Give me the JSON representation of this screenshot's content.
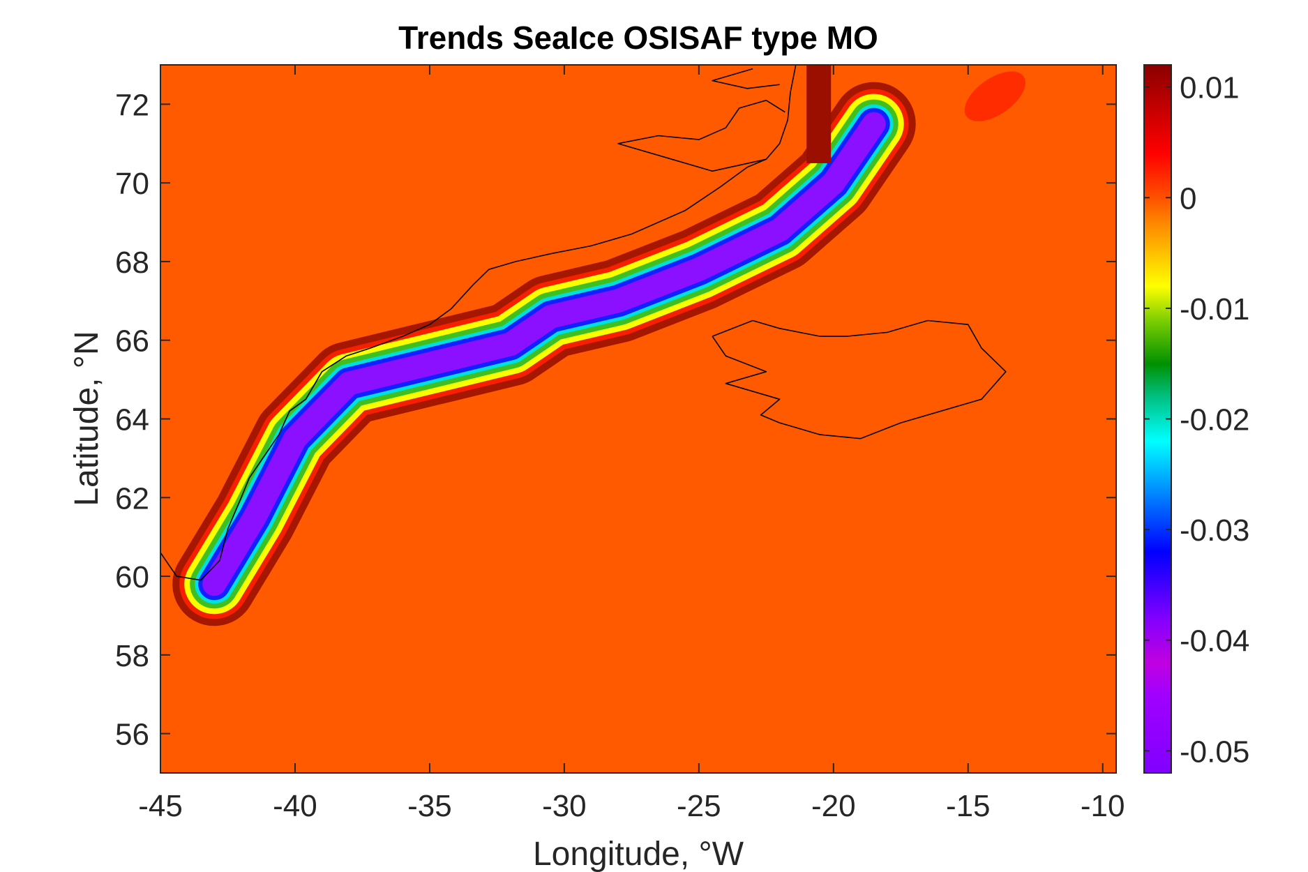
{
  "figure": {
    "title": "Trends SeaIce OSISAF type MO",
    "xlabel": "Longitude, °W",
    "ylabel": "Latitude, °N"
  },
  "map_data": {
    "type": "heatmap",
    "projection": "plate carree (lon/lat grid)",
    "x_range": [
      -45,
      -9.5
    ],
    "y_range": [
      55,
      73
    ],
    "x_ticks": [
      -45,
      -40,
      -35,
      -30,
      -25,
      -20,
      -15,
      -10
    ],
    "y_ticks": [
      56,
      58,
      60,
      62,
      64,
      66,
      68,
      70,
      72
    ],
    "x_tick_labels": [
      "-45",
      "-40",
      "-35",
      "-30",
      "-25",
      "-20",
      "-15",
      "-10"
    ],
    "y_tick_labels": [
      "56",
      "58",
      "60",
      "62",
      "64",
      "66",
      "68",
      "70",
      "72"
    ],
    "background_value": 0,
    "coastlines": [
      "Greenland east coast",
      "Iceland"
    ],
    "field_description_points": {
      "band_center_lon": [
        -43.0,
        -41.5,
        -40.0,
        -38.0,
        -35.0,
        -32.0,
        -30.5,
        -28.0,
        -25.0,
        -22.0,
        -20.0,
        -18.5
      ],
      "band_center_lat": [
        59.8,
        61.5,
        63.5,
        64.9,
        65.4,
        65.9,
        66.6,
        67.0,
        67.8,
        68.8,
        70.0,
        71.5
      ],
      "band_min_trend": -0.05
    },
    "colorbar": {
      "range": [
        -0.052,
        0.012
      ],
      "ticks": [
        0.01,
        0,
        -0.01,
        -0.02,
        -0.03,
        -0.04,
        -0.05
      ],
      "tick_labels": [
        "0.01",
        "0",
        "-0.01",
        "-0.02",
        "-0.03",
        "-0.04",
        "-0.05"
      ],
      "colormap": [
        "#8000ff",
        "#a000ff",
        "#c000e0",
        "#8000ff",
        "#0000ff",
        "#0080ff",
        "#00ffff",
        "#00c080",
        "#009000",
        "#80d000",
        "#ffff00",
        "#ff8000",
        "#ff5000",
        "#ff0000",
        "#8b0000"
      ],
      "colormap_stops": [
        -0.052,
        -0.045,
        -0.042,
        -0.038,
        -0.032,
        -0.027,
        -0.022,
        -0.018,
        -0.015,
        -0.011,
        -0.008,
        -0.002,
        0,
        0.004,
        0.012
      ]
    },
    "colors": {
      "background_field": "#ff5a00",
      "coastline": "#000000",
      "axes": "#262626"
    }
  }
}
